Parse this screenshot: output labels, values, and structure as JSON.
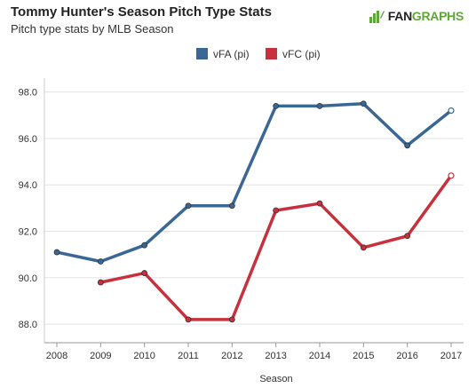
{
  "header": {
    "title": "Tommy Hunter's Season Pitch Type Stats",
    "subtitle": "Pitch type stats by MLB Season"
  },
  "logo": {
    "text_prefix": "FAN",
    "text_suffix": "GRAPHS",
    "icon": "fangraphs-logo-icon",
    "colors": {
      "prefix": "#222222",
      "suffix": "#5ea83a",
      "icon": "#5ea83a"
    }
  },
  "chart_data": {
    "type": "line",
    "xlabel": "Season",
    "ylabel": "",
    "categories": [
      "2008",
      "2009",
      "2010",
      "2011",
      "2012",
      "2013",
      "2014",
      "2015",
      "2016",
      "2017"
    ],
    "ylim": [
      87.2,
      98.6
    ],
    "yticks": [
      88.0,
      90.0,
      92.0,
      94.0,
      96.0,
      98.0
    ],
    "ytick_labels": [
      "88.0",
      "90.0",
      "92.0",
      "94.0",
      "96.0",
      "98.0"
    ],
    "grid": true,
    "legend_position": "top-center",
    "series": [
      {
        "name": "vFA (pi)",
        "color": "#3b6795",
        "values": [
          91.1,
          90.7,
          91.4,
          93.1,
          93.1,
          97.4,
          97.4,
          97.5,
          95.7,
          97.2
        ],
        "last_point_hollow": true
      },
      {
        "name": "vFC (pi)",
        "color": "#c7303c",
        "values": [
          null,
          89.8,
          90.2,
          88.2,
          88.2,
          92.9,
          93.2,
          91.3,
          91.8,
          94.4
        ],
        "last_point_hollow": true
      }
    ]
  }
}
